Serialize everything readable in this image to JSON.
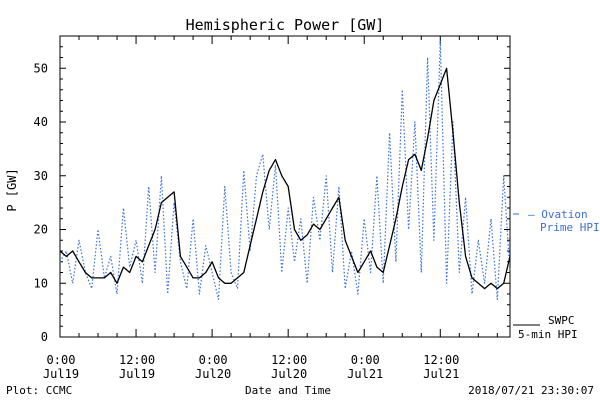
{
  "chart_data": {
    "type": "line",
    "title": "Hemispheric Power [GW]",
    "ylabel": "P [GW]",
    "xlabel": "Date and Time",
    "ylim": [
      0,
      56
    ],
    "xlim_hours": [
      0,
      71
    ],
    "yticks": [
      0,
      10,
      20,
      30,
      40,
      50
    ],
    "xticks": [
      {
        "hour": 0,
        "line1": "0:00",
        "line2": "Jul19"
      },
      {
        "hour": 12,
        "line1": "12:00",
        "line2": "Jul19"
      },
      {
        "hour": 24,
        "line1": "0:00",
        "line2": "Jul20"
      },
      {
        "hour": 36,
        "line1": "12:00",
        "line2": "Jul20"
      },
      {
        "hour": 48,
        "line1": "0:00",
        "line2": "Jul21"
      },
      {
        "hour": 60,
        "line1": "12:00",
        "line2": "Jul21"
      }
    ],
    "grid": false,
    "series": [
      {
        "name": "SWPC 5-min HPI",
        "color": "#000000",
        "style": "solid",
        "x": [
          0,
          1,
          2,
          3,
          4,
          5,
          6,
          7,
          8,
          9,
          10,
          11,
          12,
          13,
          14,
          15,
          16,
          17,
          18,
          19,
          20,
          21,
          22,
          23,
          24,
          25,
          26,
          27,
          28,
          29,
          30,
          31,
          32,
          33,
          34,
          35,
          36,
          37,
          38,
          39,
          40,
          41,
          42,
          43,
          44,
          45,
          46,
          47,
          48,
          49,
          50,
          51,
          52,
          53,
          54,
          55,
          56,
          57,
          58,
          59,
          60,
          61,
          62,
          63,
          64,
          65,
          66,
          67,
          68,
          69,
          70,
          71
        ],
        "y": [
          16,
          15,
          16,
          14,
          12,
          11,
          11,
          11,
          12,
          10,
          13,
          12,
          15,
          14,
          17,
          20,
          25,
          26,
          27,
          15,
          13,
          11,
          11,
          12,
          14,
          11,
          10,
          10,
          11,
          12,
          17,
          22,
          27,
          31,
          33,
          30,
          28,
          20,
          18,
          19,
          21,
          20,
          22,
          24,
          26,
          18,
          15,
          12,
          14,
          16,
          13,
          12,
          17,
          22,
          28,
          33,
          34,
          31,
          37,
          44,
          47,
          50,
          38,
          25,
          15,
          11,
          10,
          9,
          10,
          9,
          10,
          15
        ]
      },
      {
        "name": "Ovation Prime HPI",
        "color": "#3a6fd8",
        "style": "dotted",
        "x": [
          0,
          1,
          2,
          3,
          4,
          5,
          6,
          7,
          8,
          9,
          10,
          11,
          12,
          13,
          14,
          15,
          16,
          17,
          18,
          19,
          20,
          21,
          22,
          23,
          24,
          25,
          26,
          27,
          28,
          29,
          30,
          31,
          32,
          33,
          34,
          35,
          36,
          37,
          38,
          39,
          40,
          41,
          42,
          43,
          44,
          45,
          46,
          47,
          48,
          49,
          50,
          51,
          52,
          53,
          54,
          55,
          56,
          57,
          58,
          59,
          60,
          61,
          62,
          63,
          64,
          65,
          66,
          67,
          68,
          69,
          70,
          71
        ],
        "y": [
          14,
          16,
          10,
          18,
          12,
          9,
          20,
          11,
          15,
          8,
          24,
          13,
          18,
          10,
          28,
          12,
          30,
          8,
          25,
          14,
          9,
          22,
          8,
          17,
          12,
          7,
          28,
          12,
          9,
          31,
          16,
          30,
          34,
          20,
          32,
          12,
          24,
          14,
          22,
          10,
          26,
          18,
          30,
          12,
          28,
          9,
          16,
          8,
          22,
          12,
          30,
          10,
          38,
          14,
          46,
          20,
          40,
          12,
          52,
          18,
          55,
          10,
          40,
          12,
          26,
          8,
          18,
          10,
          22,
          7,
          30,
          12
        ]
      }
    ]
  },
  "legend": {
    "ovation_line1": "— Ovation",
    "ovation_line2": "Prime HPI",
    "swpc_line1": "SWPC",
    "swpc_line2": "5-min HPI"
  },
  "footer": {
    "left": "Plot: CCMC",
    "center": "Date and Time",
    "right": "2018/07/21 23:30:07"
  }
}
